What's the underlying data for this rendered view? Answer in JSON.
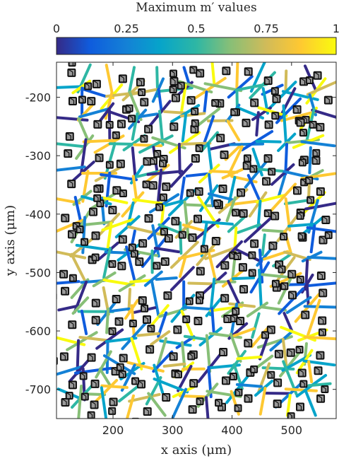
{
  "chart_data": {
    "type": "scatter",
    "title": "",
    "xlabel": "x axis (μm)",
    "ylabel": "y axis (μm)",
    "xlim": [
      105,
      575
    ],
    "ylim": [
      -750,
      -140
    ],
    "x_ticks": [
      200,
      300,
      400,
      500
    ],
    "y_ticks": [
      -200,
      -300,
      -400,
      -500,
      -600,
      -700
    ],
    "colorbar": {
      "title": "Maximum m′ values",
      "ticks": [
        "0",
        "0.25",
        "0.5",
        "0.75",
        "1"
      ],
      "range": [
        0,
        1
      ],
      "colormap": "parula"
    },
    "grid": false,
    "legend": "none",
    "description_marks": "grains (cubes) at Voronoi cell centers, boundaries colored by m′ value"
  }
}
